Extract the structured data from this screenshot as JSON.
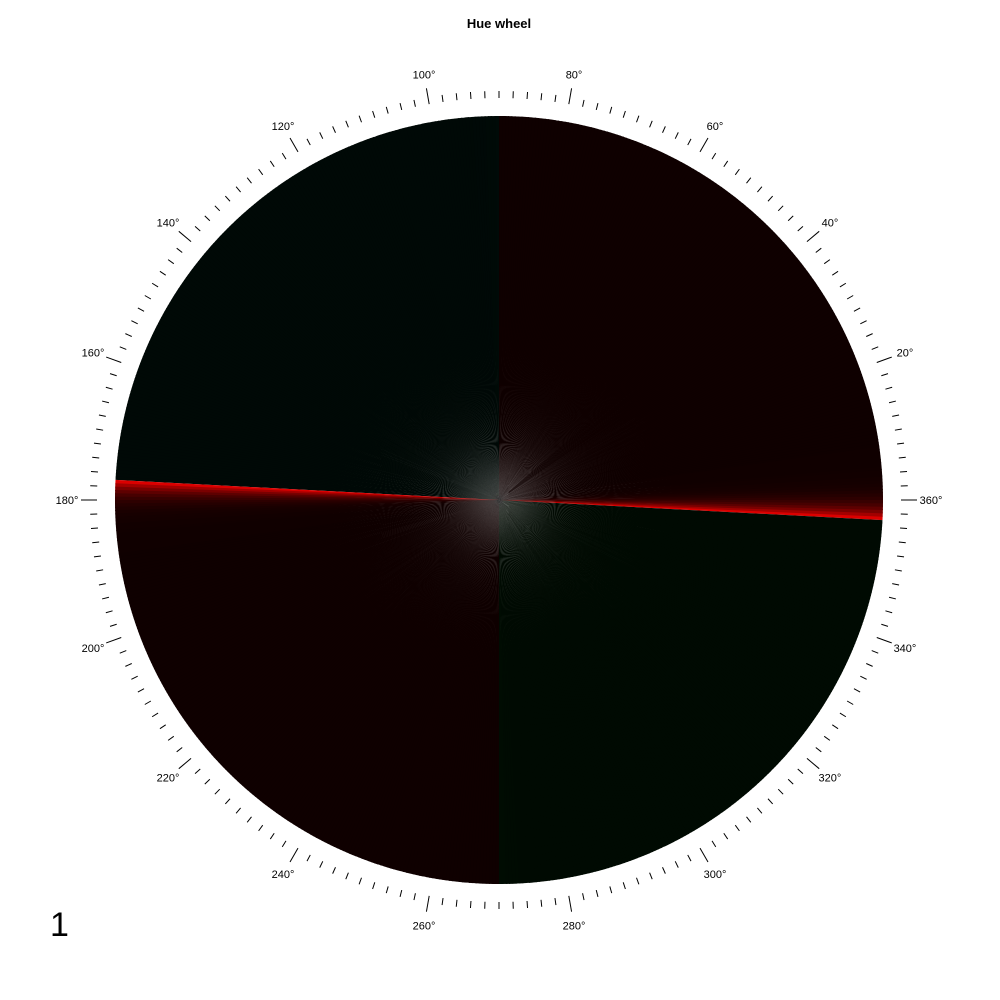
{
  "chart_data": {
    "type": "heatmap",
    "title": "Hue wheel",
    "coordinate_system": "polar",
    "angle_unit": "degrees",
    "angle_range": [
      0,
      360
    ],
    "zero_direction": "right",
    "angle_direction": "counterclockwise",
    "tick_labels": [
      "20°",
      "40°",
      "60°",
      "80°",
      "100°",
      "120°",
      "140°",
      "160°",
      "180°",
      "200°",
      "220°",
      "240°",
      "260°",
      "280°",
      "300°",
      "320°",
      "340°",
      "360°"
    ],
    "tick_label_angles": [
      20,
      40,
      60,
      80,
      100,
      120,
      140,
      160,
      180,
      200,
      220,
      240,
      260,
      280,
      300,
      320,
      340,
      360
    ],
    "minor_tick_step": 2,
    "major_tick_step": 20,
    "sectors": [
      {
        "from": -3,
        "to": 90,
        "hue": "red",
        "color": "#ff0000",
        "edge_brightness": 1.0,
        "interior_brightness": 0.06
      },
      {
        "from": 90,
        "to": 177,
        "hue": "teal-green",
        "color": "#00e0a0",
        "edge_brightness": 0.05,
        "interior_brightness": 0.04
      },
      {
        "from": 177,
        "to": 270,
        "hue": "red",
        "color": "#ff0000",
        "edge_brightness": 1.0,
        "interior_brightness": 0.06
      },
      {
        "from": 270,
        "to": 357,
        "hue": "green",
        "color": "#00ff30",
        "edge_brightness": 0.05,
        "interior_brightness": 0.04
      }
    ]
  },
  "panel_number": "1"
}
